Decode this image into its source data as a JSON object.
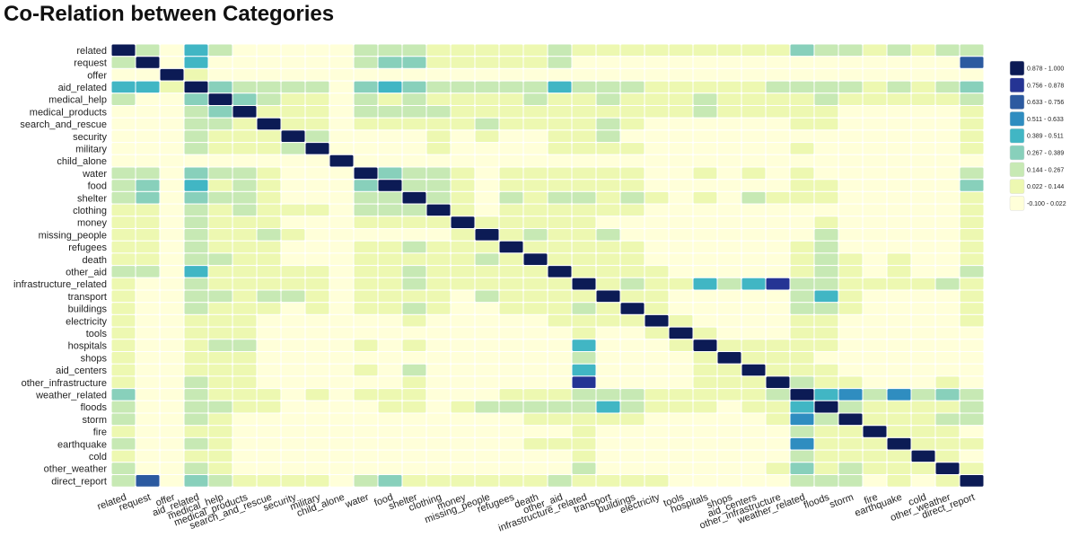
{
  "chart_data": {
    "type": "heatmap",
    "title": "Co-Relation between Categories",
    "xlabel": "",
    "ylabel": "",
    "categories": [
      "related",
      "request",
      "offer",
      "aid_related",
      "medical_help",
      "medical_products",
      "search_and_rescue",
      "security",
      "military",
      "child_alone",
      "water",
      "food",
      "shelter",
      "clothing",
      "money",
      "missing_people",
      "refugees",
      "death",
      "other_aid",
      "infrastructure_related",
      "transport",
      "buildings",
      "electricity",
      "tools",
      "hospitals",
      "shops",
      "aid_centers",
      "other_infrastructure",
      "weather_related",
      "floods",
      "storm",
      "fire",
      "earthquake",
      "cold",
      "other_weather",
      "direct_report"
    ],
    "legend": {
      "placement": "right",
      "bins": [
        {
          "label": "0.878 - 1.000",
          "color": "#0c1b55"
        },
        {
          "label": "0.756 - 0.878",
          "color": "#253494"
        },
        {
          "label": "0.633 - 0.756",
          "color": "#2c5aa0"
        },
        {
          "label": "0.511 - 0.633",
          "color": "#2f8dc0"
        },
        {
          "label": "0.389 - 0.511",
          "color": "#41b6c4"
        },
        {
          "label": "0.267 - 0.389",
          "color": "#88d0bb"
        },
        {
          "label": "0.144 - 0.267",
          "color": "#c7e9b4"
        },
        {
          "label": "0.022 - 0.144",
          "color": "#edf8b1"
        },
        {
          "label": "-0.100 - 0.022",
          "color": "#ffffd9"
        }
      ]
    },
    "nonzero_cells": [
      [
        0,
        1,
        0.2
      ],
      [
        0,
        3,
        0.45
      ],
      [
        0,
        4,
        0.2
      ],
      [
        0,
        10,
        0.15
      ],
      [
        0,
        11,
        0.2
      ],
      [
        0,
        12,
        0.2
      ],
      [
        0,
        13,
        0.1
      ],
      [
        0,
        14,
        0.07
      ],
      [
        0,
        15,
        0.05
      ],
      [
        0,
        16,
        0.1
      ],
      [
        0,
        17,
        0.07
      ],
      [
        0,
        18,
        0.2
      ],
      [
        0,
        19,
        0.12
      ],
      [
        0,
        20,
        0.1
      ],
      [
        0,
        21,
        0.1
      ],
      [
        0,
        22,
        0.05
      ],
      [
        0,
        23,
        0.04
      ],
      [
        0,
        24,
        0.05
      ],
      [
        0,
        25,
        0.04
      ],
      [
        0,
        26,
        0.05
      ],
      [
        0,
        27,
        0.07
      ],
      [
        0,
        28,
        0.3
      ],
      [
        0,
        29,
        0.2
      ],
      [
        0,
        30,
        0.2
      ],
      [
        0,
        31,
        0.1
      ],
      [
        0,
        32,
        0.2
      ],
      [
        0,
        33,
        0.1
      ],
      [
        0,
        34,
        0.15
      ],
      [
        0,
        35,
        0.2
      ],
      [
        1,
        3,
        0.45
      ],
      [
        1,
        10,
        0.2
      ],
      [
        1,
        11,
        0.3
      ],
      [
        1,
        12,
        0.3
      ],
      [
        1,
        13,
        0.12
      ],
      [
        1,
        14,
        0.05
      ],
      [
        1,
        15,
        0.05
      ],
      [
        1,
        16,
        0.1
      ],
      [
        1,
        17,
        0.05
      ],
      [
        1,
        18,
        0.15
      ],
      [
        1,
        35,
        0.7
      ],
      [
        2,
        3,
        0.05
      ],
      [
        3,
        4,
        0.3
      ],
      [
        3,
        5,
        0.25
      ],
      [
        3,
        6,
        0.2
      ],
      [
        3,
        7,
        0.2
      ],
      [
        3,
        8,
        0.2
      ],
      [
        3,
        10,
        0.3
      ],
      [
        3,
        11,
        0.45
      ],
      [
        3,
        12,
        0.3
      ],
      [
        3,
        13,
        0.2
      ],
      [
        3,
        14,
        0.2
      ],
      [
        3,
        15,
        0.15
      ],
      [
        3,
        16,
        0.2
      ],
      [
        3,
        17,
        0.2
      ],
      [
        3,
        18,
        0.5
      ],
      [
        3,
        19,
        0.2
      ],
      [
        3,
        20,
        0.2
      ],
      [
        3,
        21,
        0.2
      ],
      [
        3,
        22,
        0.1
      ],
      [
        3,
        23,
        0.07
      ],
      [
        3,
        24,
        0.12
      ],
      [
        3,
        25,
        0.07
      ],
      [
        3,
        26,
        0.12
      ],
      [
        3,
        27,
        0.15
      ],
      [
        3,
        28,
        0.2
      ],
      [
        3,
        29,
        0.2
      ],
      [
        3,
        30,
        0.15
      ],
      [
        3,
        31,
        0.07
      ],
      [
        3,
        32,
        0.15
      ],
      [
        3,
        33,
        0.1
      ],
      [
        3,
        34,
        0.15
      ],
      [
        3,
        35,
        0.3
      ],
      [
        4,
        5,
        0.3
      ],
      [
        4,
        6,
        0.15
      ],
      [
        4,
        7,
        0.1
      ],
      [
        4,
        8,
        0.1
      ],
      [
        4,
        10,
        0.15
      ],
      [
        4,
        11,
        0.1
      ],
      [
        4,
        12,
        0.15
      ],
      [
        4,
        13,
        0.1
      ],
      [
        4,
        14,
        0.05
      ],
      [
        4,
        15,
        0.1
      ],
      [
        4,
        16,
        0.1
      ],
      [
        4,
        17,
        0.15
      ],
      [
        4,
        18,
        0.12
      ],
      [
        4,
        19,
        0.12
      ],
      [
        4,
        20,
        0.15
      ],
      [
        4,
        21,
        0.12
      ],
      [
        4,
        22,
        0.05
      ],
      [
        4,
        23,
        0.05
      ],
      [
        4,
        24,
        0.2
      ],
      [
        4,
        25,
        0.05
      ],
      [
        4,
        26,
        0.1
      ],
      [
        4,
        27,
        0.1
      ],
      [
        4,
        28,
        0.1
      ],
      [
        4,
        29,
        0.15
      ],
      [
        4,
        30,
        0.07
      ],
      [
        4,
        31,
        0.07
      ],
      [
        4,
        32,
        0.05
      ],
      [
        4,
        33,
        0.05
      ],
      [
        4,
        34,
        0.07
      ],
      [
        4,
        35,
        0.15
      ],
      [
        5,
        6,
        0.1
      ],
      [
        5,
        7,
        0.05
      ],
      [
        5,
        8,
        0.07
      ],
      [
        5,
        10,
        0.2
      ],
      [
        5,
        11,
        0.15
      ],
      [
        5,
        12,
        0.15
      ],
      [
        5,
        13,
        0.2
      ],
      [
        5,
        14,
        0.07
      ],
      [
        5,
        15,
        0.05
      ],
      [
        5,
        16,
        0.07
      ],
      [
        5,
        17,
        0.07
      ],
      [
        5,
        18,
        0.1
      ],
      [
        5,
        19,
        0.12
      ],
      [
        5,
        20,
        0.07
      ],
      [
        5,
        21,
        0.1
      ],
      [
        5,
        22,
        0.05
      ],
      [
        5,
        23,
        0.07
      ],
      [
        5,
        24,
        0.15
      ],
      [
        5,
        25,
        0.04
      ],
      [
        5,
        26,
        0.1
      ],
      [
        5,
        27,
        0.07
      ],
      [
        5,
        28,
        0.05
      ],
      [
        5,
        29,
        0.05
      ],
      [
        5,
        35,
        0.1
      ],
      [
        6,
        7,
        0.1
      ],
      [
        6,
        8,
        0.07
      ],
      [
        6,
        10,
        0.05
      ],
      [
        6,
        11,
        0.05
      ],
      [
        6,
        12,
        0.05
      ],
      [
        6,
        13,
        0.05
      ],
      [
        6,
        14,
        0.05
      ],
      [
        6,
        15,
        0.2
      ],
      [
        6,
        16,
        0.1
      ],
      [
        6,
        17,
        0.1
      ],
      [
        6,
        18,
        0.1
      ],
      [
        6,
        19,
        0.1
      ],
      [
        6,
        20,
        0.2
      ],
      [
        6,
        21,
        0.1
      ],
      [
        6,
        28,
        0.07
      ],
      [
        6,
        29,
        0.1
      ],
      [
        6,
        35,
        0.05
      ],
      [
        7,
        8,
        0.2
      ],
      [
        7,
        13,
        0.07
      ],
      [
        7,
        15,
        0.1
      ],
      [
        7,
        18,
        0.1
      ],
      [
        7,
        19,
        0.1
      ],
      [
        7,
        20,
        0.15
      ],
      [
        7,
        35,
        0.05
      ],
      [
        8,
        13,
        0.05
      ],
      [
        8,
        18,
        0.1
      ],
      [
        8,
        19,
        0.1
      ],
      [
        8,
        20,
        0.1
      ],
      [
        8,
        21,
        0.05
      ],
      [
        8,
        28,
        0.05
      ],
      [
        8,
        35,
        0.05
      ],
      [
        10,
        11,
        0.3
      ],
      [
        10,
        12,
        0.2
      ],
      [
        10,
        13,
        0.15
      ],
      [
        10,
        14,
        0.05
      ],
      [
        10,
        16,
        0.1
      ],
      [
        10,
        17,
        0.1
      ],
      [
        10,
        18,
        0.1
      ],
      [
        10,
        19,
        0.1
      ],
      [
        10,
        20,
        0.1
      ],
      [
        10,
        21,
        0.1
      ],
      [
        10,
        24,
        0.05
      ],
      [
        10,
        26,
        0.05
      ],
      [
        10,
        28,
        0.05
      ],
      [
        10,
        35,
        0.2
      ],
      [
        11,
        12,
        0.25
      ],
      [
        11,
        13,
        0.2
      ],
      [
        11,
        14,
        0.1
      ],
      [
        11,
        16,
        0.12
      ],
      [
        11,
        17,
        0.1
      ],
      [
        11,
        18,
        0.12
      ],
      [
        11,
        19,
        0.1
      ],
      [
        11,
        20,
        0.1
      ],
      [
        11,
        21,
        0.1
      ],
      [
        11,
        28,
        0.05
      ],
      [
        11,
        29,
        0.05
      ],
      [
        11,
        35,
        0.3
      ],
      [
        12,
        13,
        0.2
      ],
      [
        12,
        14,
        0.1
      ],
      [
        12,
        16,
        0.15
      ],
      [
        12,
        17,
        0.1
      ],
      [
        12,
        18,
        0.15
      ],
      [
        12,
        19,
        0.15
      ],
      [
        12,
        20,
        0.1
      ],
      [
        12,
        21,
        0.2
      ],
      [
        12,
        22,
        0.1
      ],
      [
        12,
        24,
        0.05
      ],
      [
        12,
        26,
        0.15
      ],
      [
        12,
        27,
        0.1
      ],
      [
        12,
        28,
        0.1
      ],
      [
        12,
        29,
        0.1
      ],
      [
        12,
        35,
        0.1
      ],
      [
        13,
        14,
        0.1
      ],
      [
        13,
        16,
        0.1
      ],
      [
        13,
        17,
        0.07
      ],
      [
        13,
        18,
        0.1
      ],
      [
        13,
        19,
        0.1
      ],
      [
        13,
        20,
        0.07
      ],
      [
        13,
        21,
        0.05
      ],
      [
        13,
        35,
        0.05
      ],
      [
        14,
        15,
        0.05
      ],
      [
        14,
        16,
        0.05
      ],
      [
        14,
        17,
        0.05
      ],
      [
        14,
        18,
        0.07
      ],
      [
        14,
        19,
        0.05
      ],
      [
        14,
        29,
        0.07
      ],
      [
        14,
        35,
        0.05
      ],
      [
        15,
        16,
        0.1
      ],
      [
        15,
        17,
        0.15
      ],
      [
        15,
        18,
        0.07
      ],
      [
        15,
        19,
        0.07
      ],
      [
        15,
        20,
        0.15
      ],
      [
        15,
        29,
        0.15
      ],
      [
        15,
        35,
        0.05
      ],
      [
        16,
        17,
        0.1
      ],
      [
        16,
        18,
        0.1
      ],
      [
        16,
        19,
        0.1
      ],
      [
        16,
        20,
        0.1
      ],
      [
        16,
        21,
        0.1
      ],
      [
        16,
        28,
        0.07
      ],
      [
        16,
        29,
        0.15
      ],
      [
        16,
        35,
        0.05
      ],
      [
        17,
        18,
        0.1
      ],
      [
        17,
        19,
        0.1
      ],
      [
        17,
        20,
        0.07
      ],
      [
        17,
        21,
        0.1
      ],
      [
        17,
        28,
        0.1
      ],
      [
        17,
        29,
        0.15
      ],
      [
        17,
        30,
        0.05
      ],
      [
        17,
        32,
        0.05
      ],
      [
        17,
        35,
        0.05
      ],
      [
        18,
        19,
        0.1
      ],
      [
        18,
        20,
        0.1
      ],
      [
        18,
        21,
        0.07
      ],
      [
        18,
        22,
        0.05
      ],
      [
        18,
        28,
        0.1
      ],
      [
        18,
        29,
        0.15
      ],
      [
        18,
        30,
        0.07
      ],
      [
        18,
        32,
        0.05
      ],
      [
        18,
        35,
        0.15
      ],
      [
        19,
        20,
        0.1
      ],
      [
        19,
        21,
        0.2
      ],
      [
        19,
        22,
        0.1
      ],
      [
        19,
        23,
        0.07
      ],
      [
        19,
        24,
        0.45
      ],
      [
        19,
        25,
        0.2
      ],
      [
        19,
        26,
        0.5
      ],
      [
        19,
        27,
        0.8
      ],
      [
        19,
        28,
        0.15
      ],
      [
        19,
        29,
        0.15
      ],
      [
        19,
        30,
        0.1
      ],
      [
        19,
        31,
        0.05
      ],
      [
        19,
        32,
        0.07
      ],
      [
        19,
        33,
        0.05
      ],
      [
        19,
        34,
        0.15
      ],
      [
        19,
        35,
        0.05
      ],
      [
        20,
        21,
        0.1
      ],
      [
        20,
        22,
        0.1
      ],
      [
        20,
        28,
        0.15
      ],
      [
        20,
        29,
        0.45
      ],
      [
        20,
        30,
        0.1
      ],
      [
        20,
        35,
        0.05
      ],
      [
        21,
        22,
        0.07
      ],
      [
        21,
        28,
        0.15
      ],
      [
        21,
        29,
        0.15
      ],
      [
        21,
        30,
        0.05
      ],
      [
        21,
        35,
        0.05
      ],
      [
        22,
        23,
        0.05
      ],
      [
        22,
        28,
        0.07
      ],
      [
        22,
        29,
        0.05
      ],
      [
        22,
        35,
        0.03
      ],
      [
        23,
        24,
        0.05
      ],
      [
        23,
        28,
        0.05
      ],
      [
        23,
        29,
        0.05
      ],
      [
        24,
        25,
        0.07
      ],
      [
        24,
        26,
        0.1
      ],
      [
        24,
        27,
        0.1
      ],
      [
        24,
        28,
        0.05
      ],
      [
        24,
        29,
        0.07
      ],
      [
        25,
        26,
        0.07
      ],
      [
        25,
        27,
        0.1
      ],
      [
        25,
        28,
        0.05
      ],
      [
        26,
        27,
        0.1
      ],
      [
        26,
        28,
        0.07
      ],
      [
        26,
        29,
        0.1
      ],
      [
        27,
        28,
        0.15
      ],
      [
        27,
        29,
        0.1
      ],
      [
        27,
        30,
        0.05
      ],
      [
        27,
        34,
        0.1
      ],
      [
        28,
        29,
        0.45
      ],
      [
        28,
        30,
        0.6
      ],
      [
        28,
        31,
        0.15
      ],
      [
        28,
        32,
        0.55
      ],
      [
        28,
        33,
        0.2
      ],
      [
        28,
        34,
        0.3
      ],
      [
        28,
        35,
        0.25
      ],
      [
        29,
        30,
        0.15
      ],
      [
        29,
        31,
        0.05
      ],
      [
        29,
        32,
        0.07
      ],
      [
        29,
        33,
        0.05
      ],
      [
        29,
        34,
        0.1
      ],
      [
        29,
        35,
        0.15
      ],
      [
        30,
        31,
        0.05
      ],
      [
        30,
        32,
        0.05
      ],
      [
        30,
        33,
        0.05
      ],
      [
        30,
        34,
        0.15
      ],
      [
        30,
        35,
        0.15
      ],
      [
        31,
        32,
        0.05
      ],
      [
        31,
        33,
        0.05
      ],
      [
        31,
        34,
        0.05
      ],
      [
        32,
        33,
        0.05
      ],
      [
        32,
        34,
        0.05
      ],
      [
        32,
        35,
        0.05
      ],
      [
        33,
        34,
        0.07
      ],
      [
        34,
        35,
        0.07
      ]
    ]
  }
}
